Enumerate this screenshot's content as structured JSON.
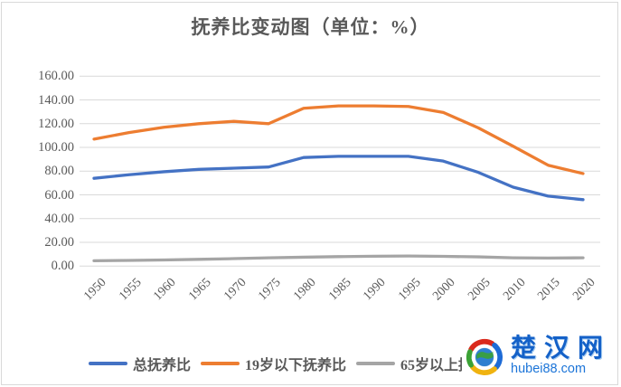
{
  "title": "抚养比变动图（单位：%）",
  "chart_data": {
    "type": "line",
    "title": "抚养比变动图（单位：%）",
    "categories": [
      "1950",
      "1955",
      "1960",
      "1965",
      "1970",
      "1975",
      "1980",
      "1985",
      "1990",
      "1995",
      "2000",
      "2005",
      "2010",
      "2015",
      "2020"
    ],
    "series": [
      {
        "id": "total",
        "name": "总抚养比",
        "color": "#4472C4",
        "values": [
          74,
          77,
          79.5,
          81.5,
          82.5,
          83.5,
          91.5,
          92.5,
          92.5,
          92.5,
          88.5,
          79,
          66.5,
          59,
          56
        ]
      },
      {
        "id": "under19",
        "name": "19岁以下抚养比",
        "color": "#ED7D31",
        "values": [
          107,
          112.5,
          117,
          120,
          122,
          120,
          133,
          135,
          135,
          134.5,
          129.5,
          116.5,
          101,
          85,
          78
        ]
      },
      {
        "id": "over65",
        "name": "65岁以上抚养比",
        "color": "#A5A5A5",
        "values": [
          4.5,
          4.8,
          5.2,
          5.7,
          6.3,
          7,
          7.5,
          8,
          8.3,
          8.5,
          8.2,
          7.8,
          7,
          6.8,
          7
        ]
      }
    ],
    "y_ticks": [
      "160.00",
      "140.00",
      "120.00",
      "100.00",
      "80.00",
      "60.00",
      "40.00",
      "20.00",
      "0.00"
    ],
    "ylim": [
      0,
      160
    ],
    "xlabel": "",
    "ylabel": "",
    "grid": true,
    "legend_position": "bottom",
    "x_tick_rotation_deg": -45
  },
  "watermark": {
    "site_name": "楚汉网",
    "site_url": "hubei88.com",
    "logo": "pinwheel-globe-logo"
  },
  "colors": {
    "axis_text": "#595959",
    "gridline": "#D9D9D9",
    "frame_border": "#D9D9D9",
    "series_blue": "#4472C4",
    "series_orange": "#ED7D31",
    "series_gray": "#A5A5A5",
    "watermark_blue": "#1461C8"
  }
}
